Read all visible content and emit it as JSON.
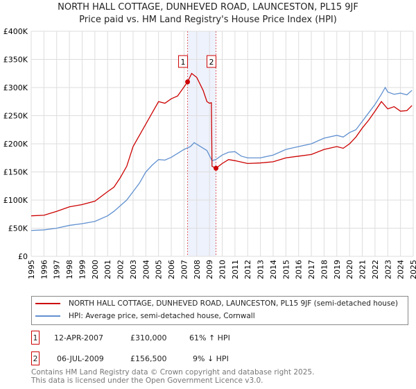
{
  "title": "NORTH HALL COTTAGE, DUNHEVED ROAD, LAUNCESTON, PL15 9JF",
  "subtitle": "Price paid vs. HM Land Registry's House Price Index (HPI)",
  "chart_data": {
    "type": "line",
    "xlim": [
      1995,
      2025
    ],
    "ylim": [
      0,
      400000
    ],
    "yticks": [
      0,
      50000,
      100000,
      150000,
      200000,
      250000,
      300000,
      350000,
      400000
    ],
    "ytick_labels": [
      "£0",
      "£50K",
      "£100K",
      "£150K",
      "£200K",
      "£250K",
      "£300K",
      "£350K",
      "£400K"
    ],
    "xticks": [
      "1995",
      "1996",
      "1997",
      "1998",
      "1999",
      "2000",
      "2001",
      "2002",
      "2003",
      "2004",
      "2005",
      "2006",
      "2007",
      "2008",
      "2009",
      "2010",
      "2011",
      "2012",
      "2013",
      "2014",
      "2015",
      "2016",
      "2017",
      "2018",
      "2019",
      "2020",
      "2021",
      "2022",
      "2023",
      "2024",
      "2025"
    ],
    "grid": true,
    "colors": {
      "property": "#cc0000",
      "hpi": "#6090d0",
      "shade": "#eef2fc"
    },
    "series": [
      {
        "name": "NORTH HALL COTTAGE, DUNHEVED ROAD, LAUNCESTON, PL15 9JF (semi-detached house)",
        "x": [
          1995,
          1996,
          1997,
          1998,
          1999,
          2000,
          2001,
          2001.5,
          2002,
          2002.5,
          2003,
          2003.5,
          2004,
          2004.5,
          2005,
          2005.5,
          2006,
          2006.5,
          2007.28,
          2007.6,
          2008,
          2008.5,
          2008.8,
          2009,
          2009.15,
          2009.2,
          2009.51,
          2010,
          2010.5,
          2011,
          2012,
          2013,
          2014,
          2015,
          2016,
          2017,
          2018,
          2019,
          2019.5,
          2020,
          2020.5,
          2021,
          2021.5,
          2022,
          2022.5,
          2023,
          2023.5,
          2024,
          2024.5,
          2024.9
        ],
        "y": [
          72000,
          73000,
          80000,
          88000,
          92000,
          98000,
          115000,
          123000,
          140000,
          160000,
          195000,
          215000,
          235000,
          255000,
          275000,
          272000,
          280000,
          285000,
          310000,
          325000,
          318000,
          295000,
          275000,
          272000,
          273000,
          160000,
          156500,
          165000,
          172000,
          170000,
          165000,
          166000,
          168000,
          175000,
          178000,
          181000,
          190000,
          195000,
          192000,
          200000,
          212000,
          228000,
          242000,
          258000,
          275000,
          262000,
          266000,
          258000,
          259000,
          268000
        ]
      },
      {
        "name": "HPI: Average price, semi-detached house, Cornwall",
        "x": [
          1995,
          1996,
          1997,
          1998,
          1999,
          2000,
          2001,
          2001.5,
          2002,
          2002.5,
          2003,
          2003.5,
          2004,
          2004.5,
          2005,
          2005.5,
          2006,
          2006.5,
          2007,
          2007.5,
          2007.8,
          2008.3,
          2008.8,
          2009.2,
          2009.5,
          2010,
          2010.5,
          2011,
          2011.5,
          2012,
          2013,
          2014,
          2015,
          2016,
          2017,
          2018,
          2019,
          2019.5,
          2020,
          2020.5,
          2021,
          2021.5,
          2022,
          2022.5,
          2022.8,
          2023,
          2023.5,
          2024,
          2024.5,
          2024.9
        ],
        "y": [
          46000,
          47000,
          50000,
          55000,
          58000,
          62000,
          72000,
          80000,
          90000,
          100000,
          115000,
          130000,
          150000,
          162000,
          172000,
          171000,
          176000,
          183000,
          190000,
          195000,
          202000,
          195000,
          188000,
          170000,
          172000,
          180000,
          185000,
          186000,
          178000,
          175000,
          175000,
          180000,
          190000,
          195000,
          200000,
          210000,
          215000,
          212000,
          220000,
          225000,
          240000,
          255000,
          270000,
          288000,
          300000,
          292000,
          288000,
          290000,
          287000,
          295000
        ]
      }
    ],
    "sales": [
      {
        "label": "1",
        "x": 2007.28,
        "y": 310000
      },
      {
        "label": "2",
        "x": 2009.51,
        "y": 156500
      }
    ]
  },
  "legend": {
    "property": "NORTH HALL COTTAGE, DUNHEVED ROAD, LAUNCESTON, PL15 9JF (semi-detached house)",
    "hpi": "HPI: Average price, semi-detached house, Cornwall"
  },
  "transactions": [
    {
      "num": "1",
      "date": "12-APR-2007",
      "price": "£310,000",
      "hpi": "61% ↑ HPI"
    },
    {
      "num": "2",
      "date": "06-JUL-2009",
      "price": "£156,500",
      "hpi": "9% ↓ HPI"
    }
  ],
  "footer": {
    "line1": "Contains HM Land Registry data © Crown copyright and database right 2025.",
    "line2": "This data is licensed under the Open Government Licence v3.0."
  }
}
